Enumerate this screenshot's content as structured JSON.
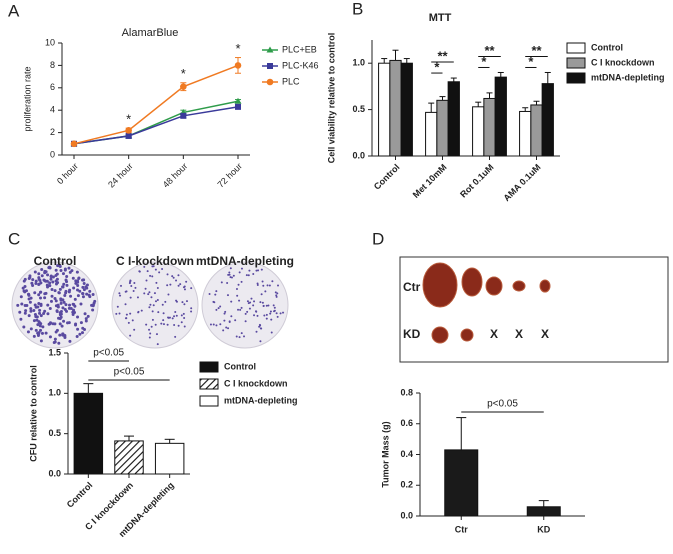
{
  "chart_data": [
    {
      "type": "line",
      "panel": "A",
      "title": "AlamarBlue",
      "ylabel": "proliferation rate",
      "categories": [
        "0 hour",
        "24 hour",
        "48 hour",
        "72 hour"
      ],
      "ylim": [
        0,
        10
      ],
      "yticks": [
        0,
        2,
        4,
        6,
        8,
        10
      ],
      "series": [
        {
          "name": "PLC+EB",
          "color": "#2e9c4a",
          "marker": "triangle",
          "values": [
            1,
            1.7,
            3.8,
            4.8
          ],
          "errors": [
            0.05,
            0.1,
            0.2,
            0.15
          ]
        },
        {
          "name": "PLC-K46",
          "color": "#3a3a9a",
          "marker": "square",
          "values": [
            1,
            1.7,
            3.5,
            4.3
          ],
          "errors": [
            0.05,
            0.1,
            0.2,
            0.2
          ]
        },
        {
          "name": "PLC",
          "color": "#f07a22",
          "marker": "circle",
          "values": [
            1,
            2.2,
            6.1,
            8.0
          ],
          "errors": [
            0.1,
            0.2,
            0.35,
            0.7
          ]
        }
      ],
      "annotations": [
        "*",
        "*",
        "*"
      ]
    },
    {
      "type": "grouped_bar",
      "panel": "B",
      "title": "MTT",
      "ylabel": "Cell viability relative to control",
      "categories": [
        "Control",
        "Met 10mM",
        "Rot 0.1uM",
        "AMA 0.1uM"
      ],
      "ylim": [
        0,
        1.25
      ],
      "yticks": [
        {
          "value": 0,
          "label": "0.0"
        },
        0.5,
        {
          "value": 1,
          "label": "1.0"
        }
      ],
      "series": [
        {
          "name": "Control",
          "color": "#ffffff",
          "values": [
            1.0,
            0.47,
            0.53,
            0.48
          ],
          "errors": [
            0.05,
            0.1,
            0.05,
            0.04
          ]
        },
        {
          "name": "C I knockdown",
          "color": "#9a9a9a",
          "values": [
            1.03,
            0.6,
            0.62,
            0.55
          ],
          "errors": [
            0.11,
            0.04,
            0.06,
            0.04
          ]
        },
        {
          "name": "mtDNA-depleting",
          "color": "#111111",
          "values": [
            1.0,
            0.8,
            0.85,
            0.78
          ],
          "errors": [
            0.05,
            0.04,
            0.05,
            0.12
          ]
        }
      ],
      "annotations": [
        "*",
        "**",
        "*",
        "**",
        "*",
        "**"
      ]
    },
    {
      "type": "bar",
      "panel": "C",
      "ylabel": "CFU relative to control",
      "image_labels": [
        "Control",
        "C I-kockdown",
        "mtDNA-depleting"
      ],
      "categories": [
        "Control",
        "C I knockdown",
        "mtDNA-depleting"
      ],
      "values": [
        1.0,
        0.41,
        0.38
      ],
      "errors": [
        0.12,
        0.06,
        0.05
      ],
      "fills": [
        "#111111",
        "hatch",
        "#ffffff"
      ],
      "ylim": [
        0,
        1.5
      ],
      "yticks": [
        {
          "value": 0,
          "label": "0.0"
        },
        0.5,
        {
          "value": 1,
          "label": "1.0"
        },
        1.5
      ],
      "annotations": [
        "p<0.05",
        "p<0.05"
      ]
    },
    {
      "type": "bar",
      "panel": "D",
      "ylabel": "Tumor Mass (g)",
      "image_labels": [
        "Ctr",
        "KD",
        "X",
        "X",
        "X"
      ],
      "categories": [
        "Ctr",
        "KD"
      ],
      "values": [
        0.43,
        0.06
      ],
      "errors": [
        0.21,
        0.04
      ],
      "fills": [
        "#1a1a1a",
        "#1a1a1a"
      ],
      "ylim": [
        0,
        0.8
      ],
      "yticks": [
        {
          "value": 0,
          "label": "0.0"
        },
        0.2,
        0.4,
        0.6,
        0.8
      ],
      "annotations": [
        "p<0.05"
      ]
    }
  ]
}
